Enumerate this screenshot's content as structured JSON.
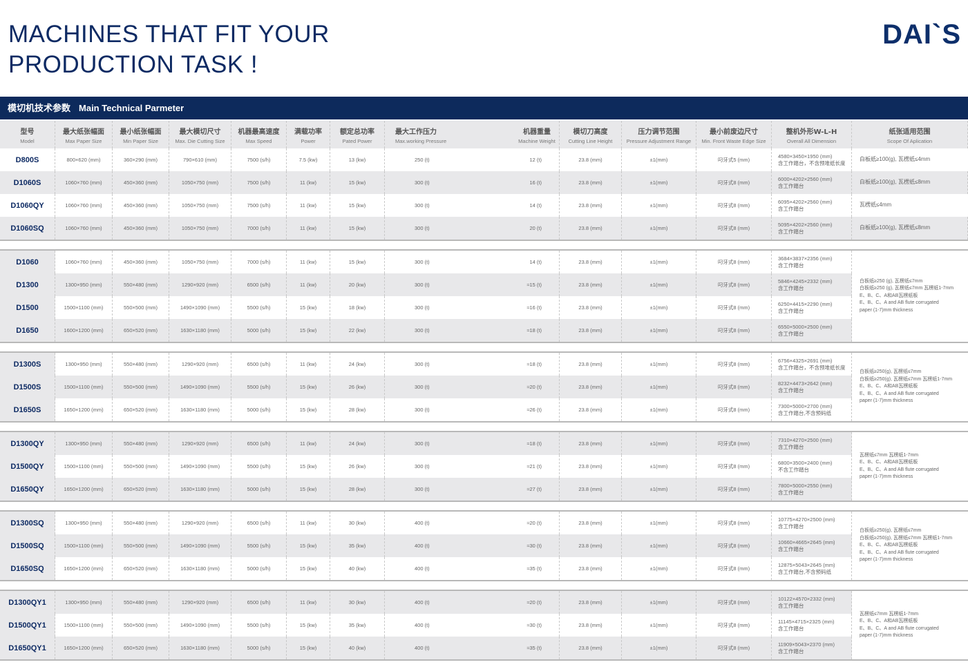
{
  "header": {
    "title_line1": "MACHINES THAT FIT YOUR",
    "title_line2": "PRODUCTION TASK !",
    "logo": "DAI`S"
  },
  "banner": {
    "zh": "模切机技术参数",
    "en": "Main Technical Parmeter"
  },
  "colors": {
    "brand": "#0d2a5c",
    "stripe": "#e8e8ea"
  },
  "columns": [
    {
      "zh": "型号",
      "en": "Model"
    },
    {
      "zh": "最大纸张幅面",
      "en": "Max Paper Size"
    },
    {
      "zh": "最小纸张幅面",
      "en": "Min Paper Size"
    },
    {
      "zh": "最大模切尺寸",
      "en": "Max. Die Cutting Size"
    },
    {
      "zh": "机器最高速度",
      "en": "Max Speed"
    },
    {
      "zh": "满载功率",
      "en": "Power"
    },
    {
      "zh": "额定总功率",
      "en": "Pated Power"
    },
    {
      "zh": "最大工作压力",
      "en": "Max.working Pressure"
    },
    {
      "zh": "机器重量",
      "en": "Machine Weight"
    },
    {
      "zh": "模切刀高度",
      "en": "Cutting Line Height"
    },
    {
      "zh": "压力调节范围",
      "en": "Pressure Adjustment Range"
    },
    {
      "zh": "最小前废边尺寸",
      "en": "Min. Front Waste Edge Size"
    },
    {
      "zh": "整机外形W-L-H",
      "en": "Overall All Dimension"
    },
    {
      "zh": "纸张适用范围",
      "en": "Scope Of Aplication"
    }
  ],
  "groups": [
    {
      "stripes": [
        0,
        1,
        0,
        1
      ],
      "rows": [
        [
          "D800S",
          "800×620 (mm)",
          "360×290 (mm)",
          "790×610 (mm)",
          "7500 (s/h)",
          "7.5 (kw)",
          "13 (kw)",
          "250 (t)",
          "12 (t)",
          "23.8 (mm)",
          "±1(mm)",
          "叼牙式5 (mm)",
          "4580×3450×1950 (mm)",
          "含工作踏台，不含预堆纸长度",
          "白板纸≥100(g), 瓦楞纸≤4mm"
        ],
        [
          "D1060S",
          "1060×760 (mm)",
          "450×360 (mm)",
          "1050×750 (mm)",
          "7500 (s/h)",
          "11 (kw)",
          "15 (kw)",
          "300 (t)",
          "16 (t)",
          "23.8 (mm)",
          "±1(mm)",
          "叼牙式8 (mm)",
          "6000×4202×2560 (mm)",
          "含工作踏台",
          "白板纸≥100(g), 瓦楞纸≤8mm"
        ],
        [
          "D1060QY",
          "1060×760 (mm)",
          "450×360 (mm)",
          "1050×750 (mm)",
          "7500 (s/h)",
          "11 (kw)",
          "15 (kw)",
          "300 (t)",
          "14 (t)",
          "23.8 (mm)",
          "±1(mm)",
          "叼牙式8 (mm)",
          "6095×4202×2560 (mm)",
          "含工作踏台",
          "瓦楞纸≤4mm"
        ],
        [
          "D1060SQ",
          "1060×760 (mm)",
          "450×360 (mm)",
          "1050×750 (mm)",
          "7000 (s/h)",
          "11 (kw)",
          "15 (kw)",
          "300 (t)",
          "20 (t)",
          "23.8 (mm)",
          "±1(mm)",
          "叼牙式8 (mm)",
          "5095×4202×2560 (mm)",
          "含工作踏台",
          "白板纸≥100(g), 瓦楞纸≤8mm"
        ]
      ]
    },
    {
      "stripes": [
        0,
        1,
        0,
        1
      ],
      "scope": [
        "白板纸≥250 (g), 瓦楞纸≤7mm",
        "白板纸≥250 (g), 瓦楞纸≤7mm  瓦楞纸1-7mm",
        "E、B、C、A和AB瓦楞纸板",
        "E、B、C、A and  AB flute corrugated",
        "paper (1-7)mm thickness"
      ],
      "rows": [
        [
          "D1060",
          "1060×760 (mm)",
          "450×360 (mm)",
          "1050×750 (mm)",
          "7000 (s/h)",
          "11 (kw)",
          "15 (kw)",
          "300 (t)",
          "14 (t)",
          "23.8 (mm)",
          "±1(mm)",
          "叼牙式8 (mm)",
          "3684×3837×2356 (mm)",
          "含工作踏台"
        ],
        [
          "D1300",
          "1300×950 (mm)",
          "550×480 (mm)",
          "1290×920 (mm)",
          "6500 (s/h)",
          "11 (kw)",
          "20 (kw)",
          "300 (t)",
          "≈15 (t)",
          "23.8 (mm)",
          "±1(mm)",
          "叼牙式8 (mm)",
          "5846×4245×2332 (mm)",
          "含工作踏台"
        ],
        [
          "D1500",
          "1500×1100 (mm)",
          "550×500 (mm)",
          "1490×1090 (mm)",
          "5500 (s/h)",
          "15 (kw)",
          "18 (kw)",
          "300 (t)",
          "≈16 (t)",
          "23.8 (mm)",
          "±1(mm)",
          "叼牙式8 (mm)",
          "6250×4415×2290 (mm)",
          "含工作踏台"
        ],
        [
          "D1650",
          "1600×1200 (mm)",
          "650×520 (mm)",
          "1630×1180 (mm)",
          "5000 (s/h)",
          "15 (kw)",
          "22 (kw)",
          "300 (t)",
          "≈18 (t)",
          "23.8 (mm)",
          "±1(mm)",
          "叼牙式8 (mm)",
          "6550×5000×2500 (mm)",
          "含工作踏台"
        ]
      ]
    },
    {
      "stripes": [
        0,
        1,
        0
      ],
      "scope": [
        "白板纸≥250(g), 瓦楞纸≤7mm",
        "白板纸≥250(g), 瓦楞纸≤7mm  瓦楞纸1-7mm",
        "E、B、C、A和AB瓦楞纸板",
        "E、B、C、A and  AB flute corrugated",
        "paper (1-7)mm thickness"
      ],
      "rows": [
        [
          "D1300S",
          "1300×950 (mm)",
          "550×480 (mm)",
          "1290×920 (mm)",
          "6500 (s/h)",
          "11 (kw)",
          "24 (kw)",
          "300 (t)",
          "≈18 (t)",
          "23.8 (mm)",
          "±1(mm)",
          "叼牙式8 (mm)",
          "6756×4325×2691 (mm)",
          "含工作踏台，不含预堆纸长度"
        ],
        [
          "D1500S",
          "1500×1100 (mm)",
          "550×500 (mm)",
          "1490×1090 (mm)",
          "5500 (s/h)",
          "15 (kw)",
          "26 (kw)",
          "300 (t)",
          "≈20 (t)",
          "23.8 (mm)",
          "±1(mm)",
          "叼牙式8 (mm)",
          "8232×4473×2642 (mm)",
          "含工作踏台"
        ],
        [
          "D1650S",
          "1650×1200 (mm)",
          "650×520 (mm)",
          "1630×1180 (mm)",
          "5000 (s/h)",
          "15 (kw)",
          "28 (kw)",
          "300 (t)",
          "≈26 (t)",
          "23.8 (mm)",
          "±1(mm)",
          "叼牙式8 (mm)",
          "7300×5000×2700 (mm)",
          "含工作踏台,不含预码纸"
        ]
      ]
    },
    {
      "stripes": [
        1,
        0,
        1
      ],
      "scope": [
        "瓦楞纸≤7mm  瓦楞纸1-7mm",
        "E、B、C、A和AB瓦楞纸板",
        "E、B、C、A and  AB flute corrugated",
        "paper (1-7)mm thickness"
      ],
      "rows": [
        [
          "D1300QY",
          "1300×950 (mm)",
          "550×480 (mm)",
          "1290×920 (mm)",
          "6500 (s/h)",
          "11 (kw)",
          "24 (kw)",
          "300 (t)",
          "≈18 (t)",
          "23.8 (mm)",
          "±1(mm)",
          "叼牙式8 (mm)",
          "7310×4270×2500 (mm)",
          "含工作踏台"
        ],
        [
          "D1500QY",
          "1500×1100 (mm)",
          "550×500 (mm)",
          "1490×1090 (mm)",
          "5500 (s/h)",
          "15 (kw)",
          "26 (kw)",
          "300 (t)",
          "≈21 (t)",
          "23.8 (mm)",
          "±1(mm)",
          "叼牙式8 (mm)",
          "6800×3500×2400 (mm)",
          "不含工作踏台"
        ],
        [
          "D1650QY",
          "1650×1200 (mm)",
          "650×520 (mm)",
          "1630×1180 (mm)",
          "5000 (s/h)",
          "15 (kw)",
          "28 (kw)",
          "300 (t)",
          "≈27 (t)",
          "23.8 (mm)",
          "±1(mm)",
          "叼牙式8 (mm)",
          "7800×5000×2550 (mm)",
          "含工作踏台"
        ]
      ]
    },
    {
      "stripes": [
        0,
        1,
        0
      ],
      "scope": [
        "白板纸≥250(g), 瓦楞纸≤7mm",
        "白板纸≥250(g), 瓦楞纸≤7mm  瓦楞纸1-7mm",
        "E、B、C、A和AB瓦楞纸板",
        "E、B、C、A and  AB flute corrugated",
        "paper (1-7)mm thickness"
      ],
      "rows": [
        [
          "D1300SQ",
          "1300×950 (mm)",
          "550×480 (mm)",
          "1290×920 (mm)",
          "6500 (s/h)",
          "11 (kw)",
          "30 (kw)",
          "400 (t)",
          "≈20 (t)",
          "23.8 (mm)",
          "±1(mm)",
          "叼牙式8 (mm)",
          "10775×4270×2500 (mm)",
          "含工作踏台"
        ],
        [
          "D1500SQ",
          "1500×1100 (mm)",
          "550×500 (mm)",
          "1490×1090 (mm)",
          "5500 (s/h)",
          "15 (kw)",
          "35 (kw)",
          "400 (t)",
          "≈30 (t)",
          "23.8 (mm)",
          "±1(mm)",
          "叼牙式8 (mm)",
          "10660×4665×2645 (mm)",
          "含工作踏台"
        ],
        [
          "D1650SQ",
          "1650×1200 (mm)",
          "650×520 (mm)",
          "1630×1180 (mm)",
          "5000 (s/h)",
          "15 (kw)",
          "40 (kw)",
          "400 (t)",
          "≈35 (t)",
          "23.8 (mm)",
          "±1(mm)",
          "叼牙式8 (mm)",
          "12875×5043×2645 (mm)",
          "含工作踏台,不含预码纸"
        ]
      ]
    },
    {
      "stripes": [
        1,
        0,
        1
      ],
      "scope": [
        "瓦楞纸≤7mm  瓦楞纸1-7mm",
        "E、B、C、A和AB瓦楞纸板",
        "E、B、C、A and  AB flute corrugated",
        "paper (1-7)mm thickness"
      ],
      "rows": [
        [
          "D1300QY1",
          "1300×950 (mm)",
          "550×480 (mm)",
          "1290×920 (mm)",
          "6500 (s/h)",
          "11 (kw)",
          "30 (kw)",
          "400 (t)",
          "≈20 (t)",
          "23.8 (mm)",
          "±1(mm)",
          "叼牙式8 (mm)",
          "10122×4570×2332 (mm)",
          "含工作踏台"
        ],
        [
          "D1500QY1",
          "1500×1100 (mm)",
          "550×500 (mm)",
          "1490×1090 (mm)",
          "5500 (s/h)",
          "15 (kw)",
          "35 (kw)",
          "400 (t)",
          "≈30 (t)",
          "23.8 (mm)",
          "±1(mm)",
          "叼牙式8 (mm)",
          "11145×4715×2325 (mm)",
          "含工作踏台"
        ],
        [
          "D1650QY1",
          "1650×1200 (mm)",
          "650×520 (mm)",
          "1630×1180 (mm)",
          "5000 (s/h)",
          "15 (kw)",
          "40 (kw)",
          "400 (t)",
          "≈35 (t)",
          "23.8 (mm)",
          "±1(mm)",
          "叼牙式8 (mm)",
          "11909×5043×2370 (mm)",
          "含工作踏台"
        ]
      ]
    }
  ]
}
